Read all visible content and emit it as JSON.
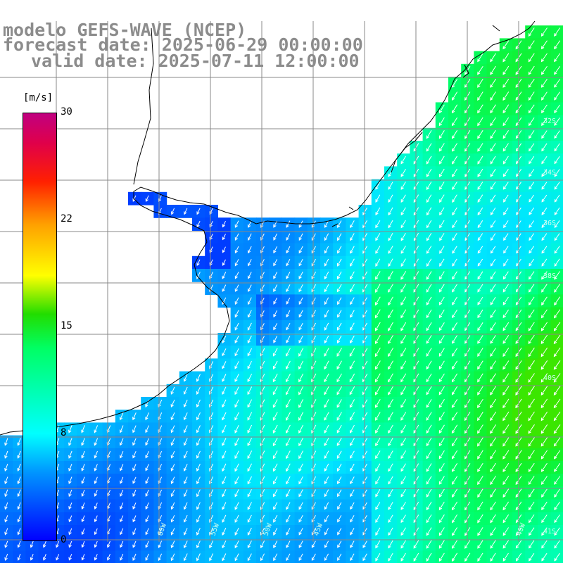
{
  "title": {
    "line1": "modelo GEFS-WAVE (NCEP)",
    "line2": "forecast date: 2025-06-29 00:00:00",
    "line3": "valid date: 2025-07-11 12:00:00"
  },
  "colorbar": {
    "unit": "[m/s]",
    "ticks": [
      "30",
      "22",
      "15",
      "8",
      "0"
    ],
    "tick_values": [
      30,
      22,
      15,
      8,
      0
    ],
    "range": [
      0,
      30
    ],
    "colors": [
      "#0000ff",
      "#00ffff",
      "#00ff64",
      "#22dd00",
      "#ffff00",
      "#ff2000",
      "#c00080"
    ]
  },
  "map": {
    "region": "South Atlantic off southern Brazil / Uruguay / Argentina",
    "field": "wind speed with direction arrows",
    "grid_color": "#888888",
    "coastline_color": "#000000",
    "arrow_color": "#ffffff",
    "lon_labels": [
      "60W",
      "55W",
      "50W",
      "45W",
      "40W"
    ],
    "lat_labels": [
      "32S",
      "34S",
      "36S",
      "38S",
      "40S",
      "41S"
    ]
  }
}
